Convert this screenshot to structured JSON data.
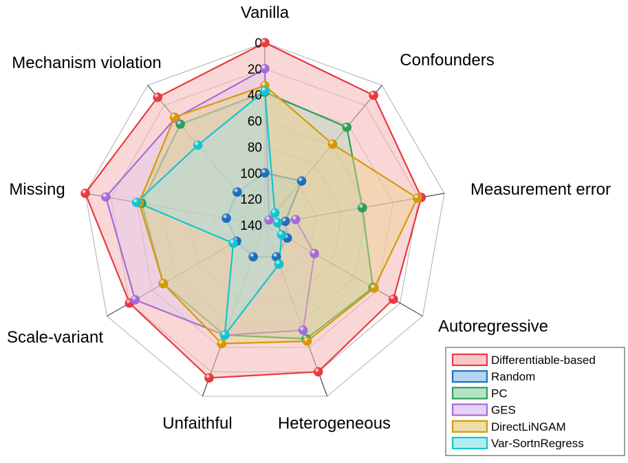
{
  "chart_data": {
    "type": "radar",
    "title": "",
    "axes": [
      "Vanilla",
      "Confounders",
      "Measurement error",
      "Autoregressive",
      "Heterogeneous",
      "Unfaithful",
      "Scale-variant",
      "Missing",
      "Mechanism violation"
    ],
    "radial_ticks": [
      0,
      20,
      40,
      60,
      80,
      100,
      120,
      140
    ],
    "radial_range": [
      0,
      140
    ],
    "radial_inverted": true,
    "grid": true,
    "legend_position": "bottom-right",
    "series": [
      {
        "name": "Differentiable-based",
        "color": "#e8393f",
        "fill": "#f4b6b6",
        "fill_opacity": 0.55,
        "values": [
          0,
          10,
          18,
          26,
          20,
          15,
          20,
          0,
          12
        ]
      },
      {
        "name": "Random",
        "color": "#1f6fbf",
        "fill": "#9ec5e8",
        "fill_opacity": 0.35,
        "values": [
          100,
          96,
          124,
          120,
          114,
          114,
          115,
          110,
          107
        ]
      },
      {
        "name": "PC",
        "color": "#2aa05a",
        "fill": "#9fd8b4",
        "fill_opacity": 0.35,
        "values": [
          38,
          42,
          64,
          44,
          47,
          50,
          50,
          44,
          39
        ]
      },
      {
        "name": "GES",
        "color": "#a66bd6",
        "fill": "#dcc3f0",
        "fill_opacity": 0.35,
        "values": [
          20,
          135,
          116,
          96,
          54,
          50,
          25,
          16,
          33
        ]
      },
      {
        "name": "DirectLiNGAM",
        "color": "#d49a07",
        "fill": "#ebd08a",
        "fill_opacity": 0.45,
        "values": [
          33,
          59,
          21,
          43,
          45,
          43,
          50,
          42,
          32
        ]
      },
      {
        "name": "Var-SortnRegress",
        "color": "#12c4cf",
        "fill": "#98e6ea",
        "fill_opacity": 0.35,
        "values": [
          37,
          128,
          130,
          125,
          108,
          50,
          112,
          40,
          60
        ]
      }
    ]
  }
}
